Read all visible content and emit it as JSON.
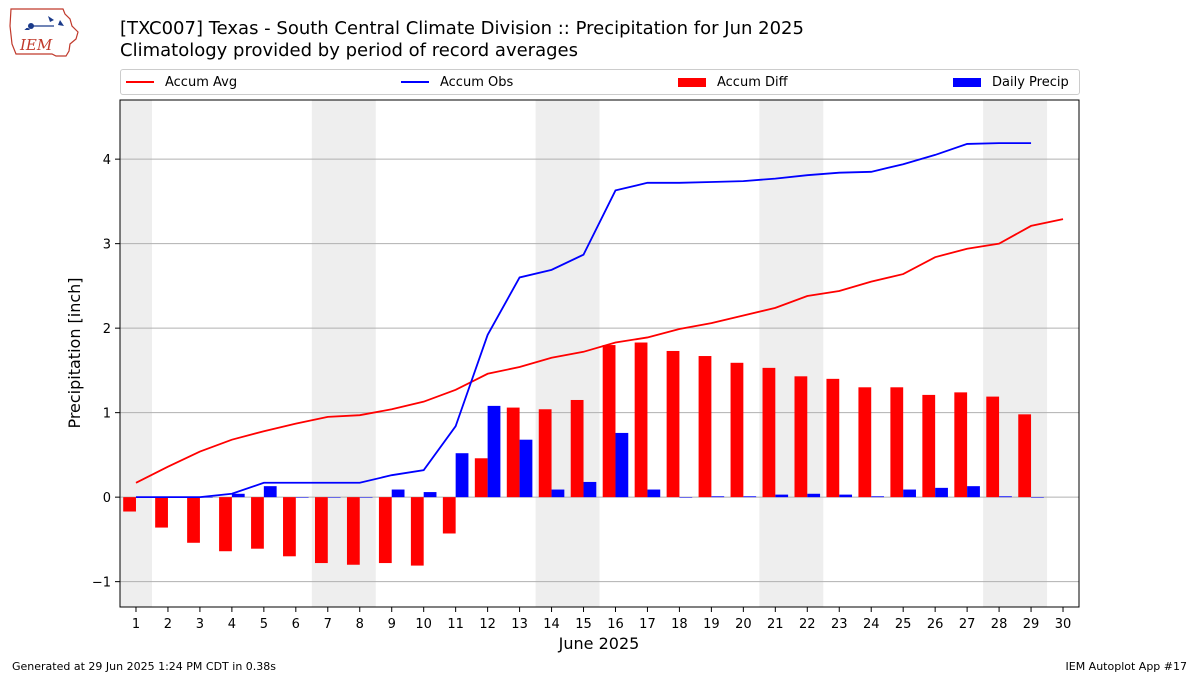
{
  "header": {
    "title_line1": "[TXC007] Texas - South Central Climate Division :: Precipitation for Jun 2025",
    "title_line2": "Climatology provided by period of record averages"
  },
  "logo": {
    "text": "IEM"
  },
  "footer": {
    "generated": "Generated at 29 Jun 2025 1:24 PM CDT in 0.38s",
    "app": "IEM Autoplot App #17"
  },
  "legend": [
    {
      "label": "Accum Avg",
      "kind": "line",
      "color": "#ff0000"
    },
    {
      "label": "Accum Obs",
      "kind": "line",
      "color": "#0000ff"
    },
    {
      "label": "Accum Diff",
      "kind": "bar",
      "color": "#ff0000"
    },
    {
      "label": "Daily Precip",
      "kind": "bar",
      "color": "#0000ff"
    }
  ],
  "chart_data": {
    "type": "bar",
    "xlabel": "June 2025",
    "ylabel": "Precipitation [inch]",
    "xlim": [
      0.5,
      30.5
    ],
    "ylim": [
      -1.3,
      4.7
    ],
    "x_ticks": [
      1,
      2,
      3,
      4,
      5,
      6,
      7,
      8,
      9,
      10,
      11,
      12,
      13,
      14,
      15,
      16,
      17,
      18,
      19,
      20,
      21,
      22,
      23,
      24,
      25,
      26,
      27,
      28,
      29,
      30
    ],
    "y_ticks": [
      -1,
      0,
      1,
      2,
      3,
      4
    ],
    "y_tick_labels": [
      "−1",
      "0",
      "1",
      "2",
      "3",
      "4"
    ],
    "grid": "horizontal",
    "weekend_shading": [
      [
        0.5,
        1.5
      ],
      [
        6.5,
        8.5
      ],
      [
        13.5,
        15.5
      ],
      [
        20.5,
        22.5
      ],
      [
        27.5,
        29.5
      ]
    ],
    "weekend_color": "#eeeeee",
    "series": [
      {
        "name": "Accum Avg",
        "kind": "line",
        "color": "#ff0000",
        "x": [
          1,
          2,
          3,
          4,
          5,
          6,
          7,
          8,
          9,
          10,
          11,
          12,
          13,
          14,
          15,
          16,
          17,
          18,
          19,
          20,
          21,
          22,
          23,
          24,
          25,
          26,
          27,
          28,
          29,
          30
        ],
        "values": [
          0.17,
          0.36,
          0.54,
          0.68,
          0.78,
          0.87,
          0.95,
          0.97,
          1.04,
          1.13,
          1.27,
          1.46,
          1.54,
          1.65,
          1.72,
          1.83,
          1.89,
          1.99,
          2.06,
          2.15,
          2.24,
          2.38,
          2.44,
          2.55,
          2.64,
          2.84,
          2.94,
          3.0,
          3.21,
          3.29
        ]
      },
      {
        "name": "Accum Obs",
        "kind": "line",
        "color": "#0000ff",
        "x": [
          1,
          2,
          3,
          4,
          5,
          6,
          7,
          8,
          9,
          10,
          11,
          12,
          13,
          14,
          15,
          16,
          17,
          18,
          19,
          20,
          21,
          22,
          23,
          24,
          25,
          26,
          27,
          28,
          29
        ],
        "values": [
          0.0,
          0.0,
          0.0,
          0.04,
          0.17,
          0.17,
          0.17,
          0.17,
          0.26,
          0.32,
          0.84,
          1.92,
          2.6,
          2.69,
          2.87,
          3.63,
          3.72,
          3.72,
          3.73,
          3.74,
          3.77,
          3.81,
          3.84,
          3.85,
          3.94,
          4.05,
          4.18,
          4.19,
          4.19
        ]
      },
      {
        "name": "Accum Diff",
        "kind": "bar",
        "color": "#ff0000",
        "offset": -0.2,
        "x": [
          1,
          2,
          3,
          4,
          5,
          6,
          7,
          8,
          9,
          10,
          11,
          12,
          13,
          14,
          15,
          16,
          17,
          18,
          19,
          20,
          21,
          22,
          23,
          24,
          25,
          26,
          27,
          28,
          29
        ],
        "values": [
          -0.17,
          -0.36,
          -0.54,
          -0.64,
          -0.61,
          -0.7,
          -0.78,
          -0.8,
          -0.78,
          -0.81,
          -0.43,
          0.46,
          1.06,
          1.04,
          1.15,
          1.8,
          1.83,
          1.73,
          1.67,
          1.59,
          1.53,
          1.43,
          1.4,
          1.3,
          1.3,
          1.21,
          1.24,
          1.19,
          0.98
        ]
      },
      {
        "name": "Daily Precip",
        "kind": "bar",
        "color": "#0000ff",
        "offset": 0.2,
        "x": [
          1,
          2,
          3,
          4,
          5,
          6,
          7,
          8,
          9,
          10,
          11,
          12,
          13,
          14,
          15,
          16,
          17,
          18,
          19,
          20,
          21,
          22,
          23,
          24,
          25,
          26,
          27,
          28,
          29
        ],
        "values": [
          0.0,
          0.0,
          0.0,
          0.04,
          0.13,
          0.0,
          0.0,
          0.0,
          0.09,
          0.06,
          0.52,
          1.08,
          0.68,
          0.09,
          0.18,
          0.76,
          0.09,
          0.0,
          0.01,
          0.01,
          0.03,
          0.04,
          0.03,
          0.01,
          0.09,
          0.11,
          0.13,
          0.01,
          0.0
        ]
      }
    ]
  }
}
